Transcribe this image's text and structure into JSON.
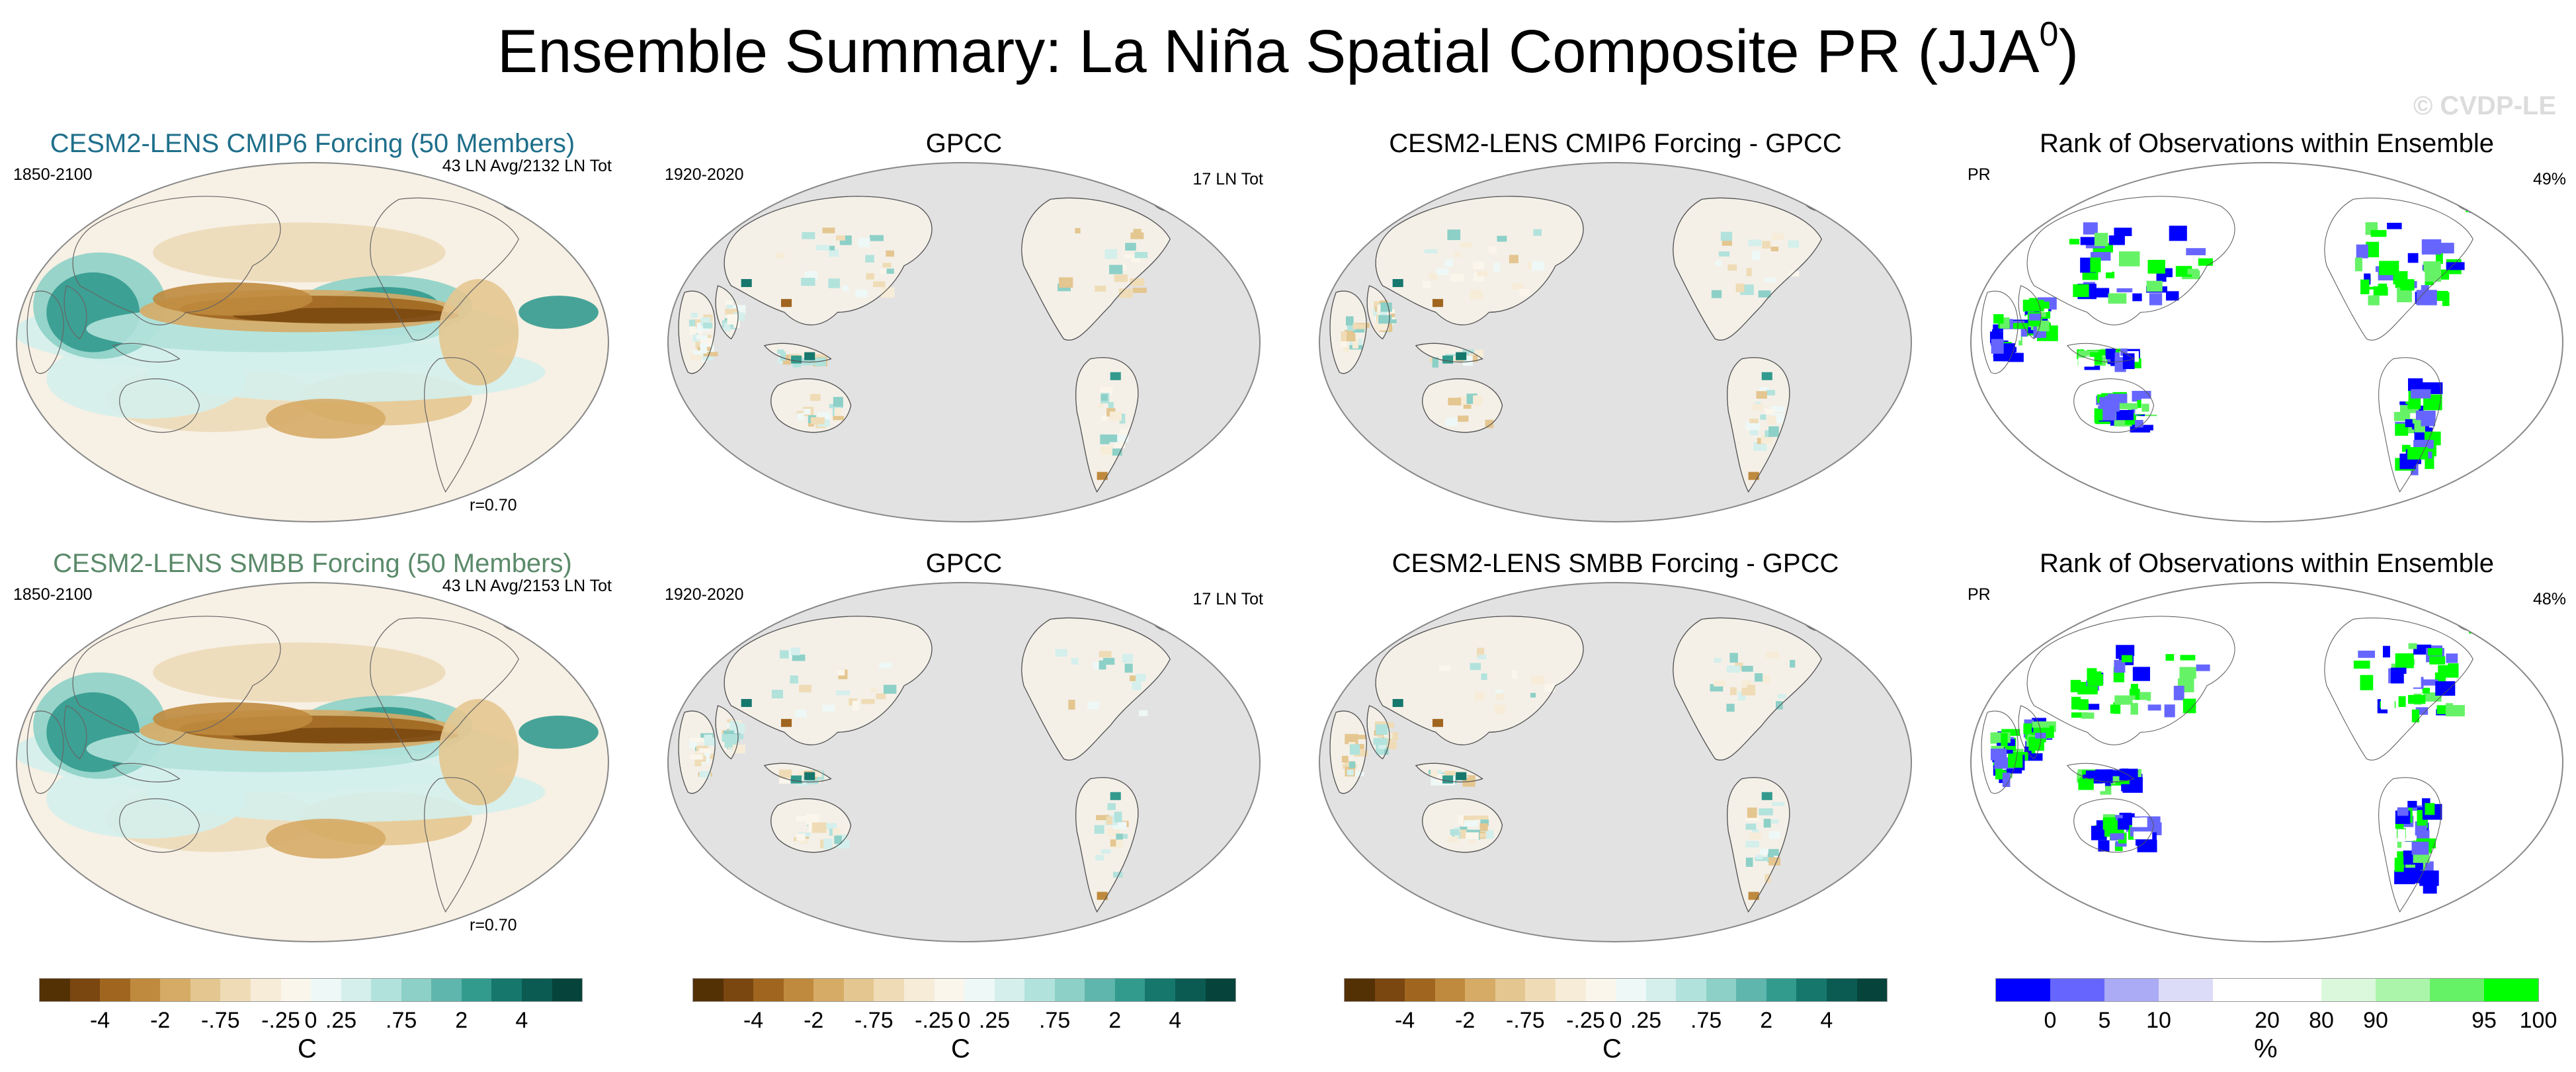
{
  "title": "Ensemble Summary: La Niña Spatial Composite PR (JJA",
  "title_sup": "0",
  "title_close": ")",
  "watermark": "© CVDP-LE",
  "rows": [
    {
      "panels": [
        {
          "title": "CESM2-LENS CMIP6 Forcing (50 Members)",
          "title_color": "#1f6f8b",
          "left": "1850-2100",
          "right": "43 LN Avg/2132 LN Tot",
          "bottom": "r=0.70",
          "kind": "model"
        },
        {
          "title": "GPCC",
          "left": "1920-2020",
          "right": "17 LN Tot",
          "kind": "obs"
        },
        {
          "title": "CESM2-LENS CMIP6 Forcing - GPCC",
          "left": "",
          "right": "",
          "kind": "diff"
        },
        {
          "title": "Rank of Observations within Ensemble",
          "left": "PR",
          "right": "49%",
          "kind": "rank"
        }
      ]
    },
    {
      "panels": [
        {
          "title": "CESM2-LENS SMBB Forcing (50 Members)",
          "title_color": "#5b8a6a",
          "left": "1850-2100",
          "right": "43 LN Avg/2153 LN Tot",
          "bottom": "r=0.70",
          "kind": "model"
        },
        {
          "title": "GPCC",
          "left": "1920-2020",
          "right": "17 LN Tot",
          "kind": "obs"
        },
        {
          "title": "CESM2-LENS SMBB Forcing - GPCC",
          "left": "",
          "right": "",
          "kind": "diff"
        },
        {
          "title": "Rank of Observations within Ensemble",
          "left": "PR",
          "right": "48%",
          "kind": "rank"
        }
      ]
    }
  ],
  "colorbars": [
    {
      "unit": "C",
      "ticks": [
        "-4",
        "-2",
        "-.75",
        "-.25",
        "0",
        ".25",
        ".75",
        "2",
        "4"
      ],
      "colors": [
        "#543005",
        "#7a4710",
        "#a0661f",
        "#bf8a3e",
        "#d6ab66",
        "#e4c690",
        "#efdcb6",
        "#f6ecd8",
        "#fbf6ec",
        "#eef8f6",
        "#d4efec",
        "#b2e2dc",
        "#8dd0c7",
        "#5fb6ac",
        "#339a8e",
        "#16776d",
        "#0b5b52",
        "#06443b"
      ]
    },
    {
      "unit": "C",
      "ticks": [
        "-4",
        "-2",
        "-.75",
        "-.25",
        "0",
        ".25",
        ".75",
        "2",
        "4"
      ],
      "colors": [
        "#543005",
        "#7a4710",
        "#a0661f",
        "#bf8a3e",
        "#d6ab66",
        "#e4c690",
        "#efdcb6",
        "#f6ecd8",
        "#fbf6ec",
        "#eef8f6",
        "#d4efec",
        "#b2e2dc",
        "#8dd0c7",
        "#5fb6ac",
        "#339a8e",
        "#16776d",
        "#0b5b52",
        "#06443b"
      ]
    },
    {
      "unit": "C",
      "ticks": [
        "-4",
        "-2",
        "-.75",
        "-.25",
        "0",
        ".25",
        ".75",
        "2",
        "4"
      ],
      "colors": [
        "#543005",
        "#7a4710",
        "#a0661f",
        "#bf8a3e",
        "#d6ab66",
        "#e4c690",
        "#efdcb6",
        "#f6ecd8",
        "#fbf6ec",
        "#eef8f6",
        "#d4efec",
        "#b2e2dc",
        "#8dd0c7",
        "#5fb6ac",
        "#339a8e",
        "#16776d",
        "#0b5b52",
        "#06443b"
      ]
    },
    {
      "unit": "%",
      "ticks": [
        "0",
        "5",
        "10",
        "20",
        "80",
        "90",
        "95",
        "100"
      ],
      "colors": [
        "#0000ff",
        "#6666ff",
        "#aaaaf5",
        "#dcdcf8",
        "#ffffff",
        "#ffffff",
        "#dcf8dc",
        "#aaf5aa",
        "#66f266",
        "#00ff00"
      ]
    }
  ]
}
